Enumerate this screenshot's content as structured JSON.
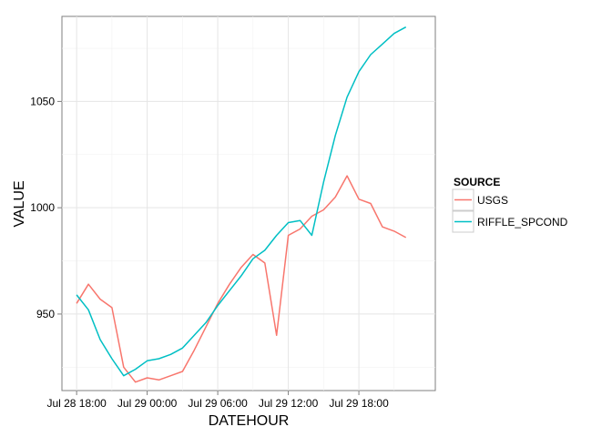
{
  "chart_data": {
    "type": "line",
    "xlabel": "DATEHOUR",
    "ylabel": "VALUE",
    "x_tick_labels": [
      "Jul 28 18:00",
      "Jul 29 00:00",
      "Jul 29 06:00",
      "Jul 29 12:00",
      "Jul 29 18:00"
    ],
    "x_tick_values": [
      "2015-07-28 18:00",
      "2015-07-29 00:00",
      "2015-07-29 06:00",
      "2015-07-29 12:00",
      "2015-07-29 18:00"
    ],
    "x_range": [
      "2015-07-28 16:45",
      "2015-07-30 00:30"
    ],
    "y_ticks": [
      950,
      1000,
      1050
    ],
    "ylim": [
      914,
      1090
    ],
    "grid": true,
    "legend": {
      "title": "SOURCE",
      "position": "right"
    },
    "x": [
      "2015-07-28 18:00",
      "2015-07-28 19:00",
      "2015-07-28 20:00",
      "2015-07-28 21:00",
      "2015-07-28 22:00",
      "2015-07-28 23:00",
      "2015-07-29 00:00",
      "2015-07-29 01:00",
      "2015-07-29 02:00",
      "2015-07-29 03:00",
      "2015-07-29 04:00",
      "2015-07-29 05:00",
      "2015-07-29 06:00",
      "2015-07-29 07:00",
      "2015-07-29 08:00",
      "2015-07-29 09:00",
      "2015-07-29 10:00",
      "2015-07-29 11:00",
      "2015-07-29 12:00",
      "2015-07-29 13:00",
      "2015-07-29 14:00",
      "2015-07-29 15:00",
      "2015-07-29 16:00",
      "2015-07-29 17:00",
      "2015-07-29 18:00",
      "2015-07-29 19:00",
      "2015-07-29 20:00",
      "2015-07-29 21:00",
      "2015-07-29 22:00",
      "2015-07-29 23:00"
    ],
    "series": [
      {
        "name": "USGS",
        "color": "#F8766D",
        "values": [
          955,
          964,
          957,
          953,
          925,
          918,
          920,
          919,
          921,
          923,
          933,
          944,
          955,
          964,
          972,
          978,
          974,
          940,
          987,
          990,
          996,
          999,
          1005,
          1015,
          1004,
          1002,
          991,
          989,
          986,
          null
        ]
      },
      {
        "name": "RIFFLE_SPCOND",
        "color": "#00BFC4",
        "values": [
          959,
          952,
          938,
          929,
          921,
          924,
          928,
          929,
          931,
          934,
          940,
          946,
          954,
          961,
          968,
          976,
          980,
          987,
          993,
          994,
          987,
          1012,
          1034,
          1052,
          1064,
          1072,
          1077,
          1082,
          1085,
          null
        ]
      }
    ]
  }
}
